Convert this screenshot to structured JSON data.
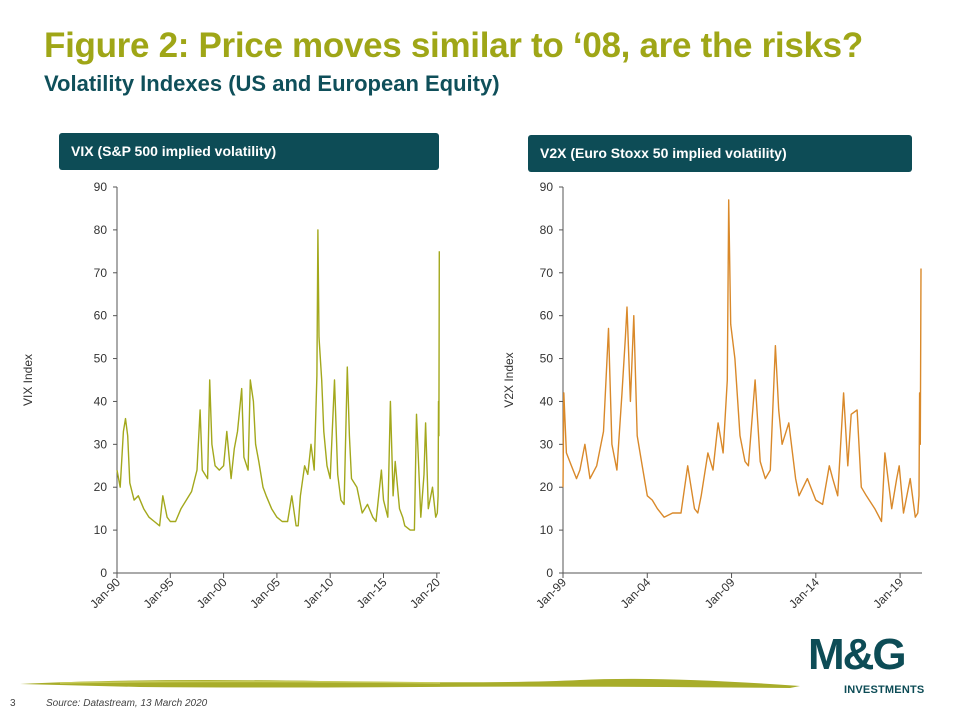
{
  "title": "Figure 2: Price moves similar to ‘08, are the risks?",
  "subtitle": "Volatility Indexes (US and European Equity)",
  "colors": {
    "vix_line": "#a3a81c",
    "v2x_line": "#d9892a",
    "header_bg": "#0d4c56",
    "title": "#9fa617"
  },
  "chart_data": [
    {
      "type": "line",
      "title": "VIX (S&P 500 implied volatility)",
      "ylabel": "VIX Index",
      "xlabel": "",
      "ylim": [
        0,
        90
      ],
      "yticks": [
        0,
        10,
        20,
        30,
        40,
        50,
        60,
        70,
        80,
        90
      ],
      "xlim": [
        1990.0,
        2020.3
      ],
      "xticks": [
        {
          "label": "Jan-90",
          "x": 1990
        },
        {
          "label": "Jan-95",
          "x": 1995
        },
        {
          "label": "Jan-00",
          "x": 2000
        },
        {
          "label": "Jan-05",
          "x": 2005
        },
        {
          "label": "Jan-10",
          "x": 2010
        },
        {
          "label": "Jan-15",
          "x": 2015
        },
        {
          "label": "Jan-20",
          "x": 2020
        }
      ],
      "grid": false,
      "series": [
        {
          "name": "VIX",
          "points": [
            [
              1990.0,
              24
            ],
            [
              1990.3,
              20
            ],
            [
              1990.6,
              33
            ],
            [
              1990.8,
              36
            ],
            [
              1991.0,
              32
            ],
            [
              1991.2,
              21
            ],
            [
              1991.6,
              17
            ],
            [
              1992.0,
              18
            ],
            [
              1992.5,
              15
            ],
            [
              1993.0,
              13
            ],
            [
              1993.5,
              12
            ],
            [
              1994.0,
              11
            ],
            [
              1994.3,
              18
            ],
            [
              1994.7,
              13
            ],
            [
              1995.0,
              12
            ],
            [
              1995.5,
              12
            ],
            [
              1996.0,
              15
            ],
            [
              1996.5,
              17
            ],
            [
              1997.0,
              19
            ],
            [
              1997.5,
              24
            ],
            [
              1997.8,
              38
            ],
            [
              1998.0,
              24
            ],
            [
              1998.5,
              22
            ],
            [
              1998.7,
              45
            ],
            [
              1998.9,
              30
            ],
            [
              1999.2,
              25
            ],
            [
              1999.6,
              24
            ],
            [
              2000.0,
              25
            ],
            [
              2000.3,
              33
            ],
            [
              2000.7,
              22
            ],
            [
              2001.0,
              29
            ],
            [
              2001.3,
              33
            ],
            [
              2001.7,
              43
            ],
            [
              2001.9,
              27
            ],
            [
              2002.3,
              24
            ],
            [
              2002.5,
              45
            ],
            [
              2002.8,
              40
            ],
            [
              2003.0,
              30
            ],
            [
              2003.3,
              26
            ],
            [
              2003.7,
              20
            ],
            [
              2004.0,
              18
            ],
            [
              2004.5,
              15
            ],
            [
              2005.0,
              13
            ],
            [
              2005.5,
              12
            ],
            [
              2006.0,
              12
            ],
            [
              2006.4,
              18
            ],
            [
              2006.8,
              11
            ],
            [
              2007.0,
              11
            ],
            [
              2007.2,
              18
            ],
            [
              2007.6,
              25
            ],
            [
              2007.9,
              23
            ],
            [
              2008.2,
              30
            ],
            [
              2008.5,
              24
            ],
            [
              2008.75,
              46
            ],
            [
              2008.85,
              80
            ],
            [
              2008.95,
              55
            ],
            [
              2009.2,
              45
            ],
            [
              2009.4,
              33
            ],
            [
              2009.7,
              25
            ],
            [
              2010.0,
              22
            ],
            [
              2010.4,
              45
            ],
            [
              2010.7,
              23
            ],
            [
              2011.0,
              17
            ],
            [
              2011.3,
              16
            ],
            [
              2011.6,
              48
            ],
            [
              2011.8,
              32
            ],
            [
              2012.0,
              22
            ],
            [
              2012.5,
              20
            ],
            [
              2013.0,
              14
            ],
            [
              2013.5,
              16
            ],
            [
              2014.0,
              13
            ],
            [
              2014.3,
              12
            ],
            [
              2014.8,
              24
            ],
            [
              2015.0,
              17
            ],
            [
              2015.4,
              13
            ],
            [
              2015.65,
              40
            ],
            [
              2015.9,
              18
            ],
            [
              2016.1,
              26
            ],
            [
              2016.5,
              15
            ],
            [
              2016.8,
              13
            ],
            [
              2017.0,
              11
            ],
            [
              2017.5,
              10
            ],
            [
              2017.9,
              10
            ],
            [
              2018.1,
              37
            ],
            [
              2018.5,
              13
            ],
            [
              2018.8,
              23
            ],
            [
              2018.95,
              35
            ],
            [
              2019.2,
              15
            ],
            [
              2019.6,
              20
            ],
            [
              2019.9,
              13
            ],
            [
              2020.05,
              14
            ],
            [
              2020.12,
              18
            ],
            [
              2020.16,
              40
            ],
            [
              2020.2,
              32
            ],
            [
              2020.23,
              75
            ]
          ]
        }
      ]
    },
    {
      "type": "line",
      "title": "V2X (Euro Stoxx 50 implied volatility)",
      "ylabel": "V2X Index",
      "xlabel": "",
      "ylim": [
        0,
        90
      ],
      "yticks": [
        0,
        10,
        20,
        30,
        40,
        50,
        60,
        70,
        80,
        90
      ],
      "xlim": [
        1999.0,
        2020.3
      ],
      "xticks": [
        {
          "label": "Jan-99",
          "x": 1999
        },
        {
          "label": "Jan-04",
          "x": 2004
        },
        {
          "label": "Jan-09",
          "x": 2009
        },
        {
          "label": "Jan-14",
          "x": 2014
        },
        {
          "label": "Jan-19",
          "x": 2019
        }
      ],
      "grid": false,
      "series": [
        {
          "name": "V2X",
          "points": [
            [
              1999.0,
              20
            ],
            [
              1999.05,
              42
            ],
            [
              1999.2,
              28
            ],
            [
              1999.5,
              25
            ],
            [
              1999.8,
              22
            ],
            [
              2000.0,
              24
            ],
            [
              2000.3,
              30
            ],
            [
              2000.6,
              22
            ],
            [
              2001.0,
              25
            ],
            [
              2001.4,
              33
            ],
            [
              2001.7,
              57
            ],
            [
              2001.9,
              30
            ],
            [
              2002.2,
              24
            ],
            [
              2002.5,
              42
            ],
            [
              2002.7,
              55
            ],
            [
              2002.8,
              62
            ],
            [
              2003.0,
              40
            ],
            [
              2003.2,
              60
            ],
            [
              2003.4,
              32
            ],
            [
              2003.7,
              25
            ],
            [
              2004.0,
              18
            ],
            [
              2004.3,
              17
            ],
            [
              2004.6,
              15
            ],
            [
              2005.0,
              13
            ],
            [
              2005.5,
              14
            ],
            [
              2006.0,
              14
            ],
            [
              2006.4,
              25
            ],
            [
              2006.8,
              15
            ],
            [
              2007.0,
              14
            ],
            [
              2007.2,
              18
            ],
            [
              2007.6,
              28
            ],
            [
              2007.9,
              24
            ],
            [
              2008.2,
              35
            ],
            [
              2008.5,
              28
            ],
            [
              2008.75,
              45
            ],
            [
              2008.83,
              87
            ],
            [
              2008.95,
              58
            ],
            [
              2009.2,
              50
            ],
            [
              2009.5,
              32
            ],
            [
              2009.8,
              26
            ],
            [
              2010.0,
              25
            ],
            [
              2010.4,
              45
            ],
            [
              2010.7,
              26
            ],
            [
              2011.0,
              22
            ],
            [
              2011.3,
              24
            ],
            [
              2011.6,
              53
            ],
            [
              2011.8,
              38
            ],
            [
              2012.0,
              30
            ],
            [
              2012.4,
              35
            ],
            [
              2012.8,
              22
            ],
            [
              2013.0,
              18
            ],
            [
              2013.5,
              22
            ],
            [
              2014.0,
              17
            ],
            [
              2014.4,
              16
            ],
            [
              2014.8,
              25
            ],
            [
              2015.0,
              22
            ],
            [
              2015.3,
              18
            ],
            [
              2015.65,
              42
            ],
            [
              2015.9,
              25
            ],
            [
              2016.1,
              37
            ],
            [
              2016.45,
              38
            ],
            [
              2016.7,
              20
            ],
            [
              2017.0,
              18
            ],
            [
              2017.5,
              15
            ],
            [
              2017.9,
              12
            ],
            [
              2018.1,
              28
            ],
            [
              2018.5,
              15
            ],
            [
              2018.8,
              22
            ],
            [
              2018.95,
              25
            ],
            [
              2019.2,
              14
            ],
            [
              2019.6,
              22
            ],
            [
              2019.9,
              13
            ],
            [
              2020.05,
              14
            ],
            [
              2020.12,
              18
            ],
            [
              2020.16,
              42
            ],
            [
              2020.2,
              30
            ],
            [
              2020.24,
              71
            ]
          ]
        }
      ]
    }
  ],
  "footer": {
    "page_number": "3",
    "source": "Source: Datastream, 13 March 2020"
  },
  "logo": {
    "mark": "M&G",
    "wordmark": "INVESTMENTS"
  }
}
